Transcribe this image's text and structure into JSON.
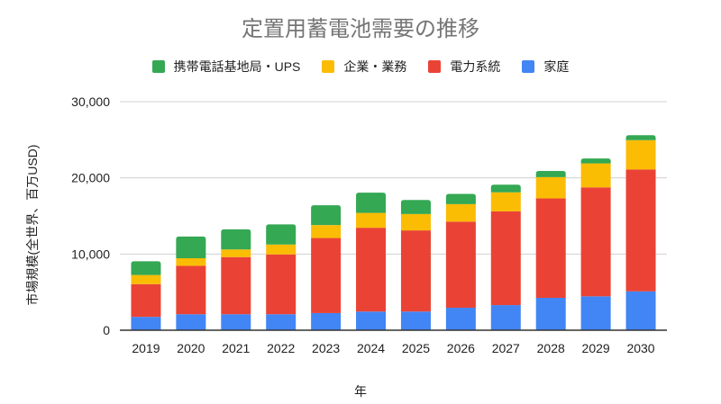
{
  "chart_data": {
    "type": "bar",
    "stacked": true,
    "title": "定置用蓄電池需要の推移",
    "xlabel": "年",
    "ylabel": "市場規模(全世界、百万USD)",
    "ylim": [
      0,
      30000
    ],
    "yticks": [
      0,
      10000,
      20000,
      30000
    ],
    "ytick_labels": [
      "0",
      "10,000",
      "20,000",
      "30,000"
    ],
    "grid": true,
    "legend_position": "top",
    "categories": [
      "2019",
      "2020",
      "2021",
      "2022",
      "2023",
      "2024",
      "2025",
      "2026",
      "2027",
      "2028",
      "2029",
      "2030"
    ],
    "series": [
      {
        "name": "家庭",
        "color": "#4285F4",
        "values": [
          1750,
          2100,
          2100,
          2100,
          2250,
          2450,
          2450,
          2950,
          3300,
          4250,
          4450,
          5100
        ]
      },
      {
        "name": "電力系統",
        "color": "#EA4335",
        "values": [
          4300,
          6350,
          7500,
          7850,
          9850,
          11000,
          10650,
          11300,
          12300,
          13050,
          14300,
          16000
        ]
      },
      {
        "name": "企業・業務",
        "color": "#FBBC04",
        "values": [
          1200,
          1000,
          1000,
          1300,
          1700,
          1950,
          2150,
          2300,
          2500,
          2800,
          3150,
          3850
        ]
      },
      {
        "name": "携帯電話基地局・UPS",
        "color": "#34A853",
        "values": [
          1800,
          2850,
          2650,
          2650,
          2600,
          2650,
          1850,
          1350,
          1000,
          800,
          650,
          650
        ]
      }
    ],
    "legend_order": [
      3,
      2,
      1,
      0
    ]
  }
}
